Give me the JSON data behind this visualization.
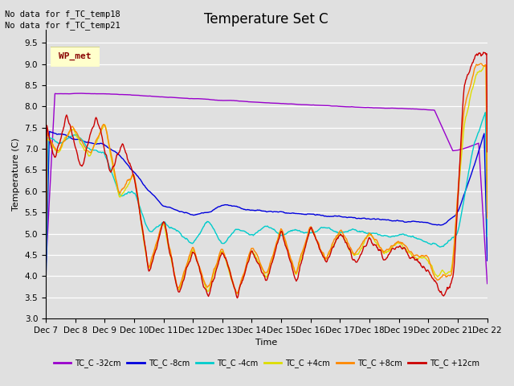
{
  "title": "Temperature Set C",
  "xlabel": "Time",
  "ylabel": "Temperature (C)",
  "annotation_lines": [
    "No data for f_TC_temp18",
    "No data for f_TC_temp21"
  ],
  "wp_met_label": "WP_met",
  "ylim": [
    3.0,
    9.8
  ],
  "yticks": [
    3.0,
    3.5,
    4.0,
    4.5,
    5.0,
    5.5,
    6.0,
    6.5,
    7.0,
    7.5,
    8.0,
    8.5,
    9.0,
    9.5
  ],
  "xtick_labels": [
    "Dec 7",
    "Dec 8",
    "Dec 9",
    "Dec 10",
    "Dec 11",
    "Dec 12",
    "Dec 13",
    "Dec 14",
    "Dec 15",
    "Dec 16",
    "Dec 17",
    "Dec 18",
    "Dec 19",
    "Dec 20",
    "Dec 21",
    "Dec 22"
  ],
  "series_names": [
    "TC_C -32cm",
    "TC_C -8cm",
    "TC_C -4cm",
    "TC_C +4cm",
    "TC_C +8cm",
    "TC_C +12cm"
  ],
  "legend_colors": [
    "#9900cc",
    "#0000dd",
    "#00cccc",
    "#dddd00",
    "#ff8800",
    "#cc0000"
  ],
  "bg_color": "#e0e0e0",
  "grid_color": "#ffffff",
  "title_fontsize": 12,
  "axis_fontsize": 8,
  "tick_fontsize": 7.5
}
